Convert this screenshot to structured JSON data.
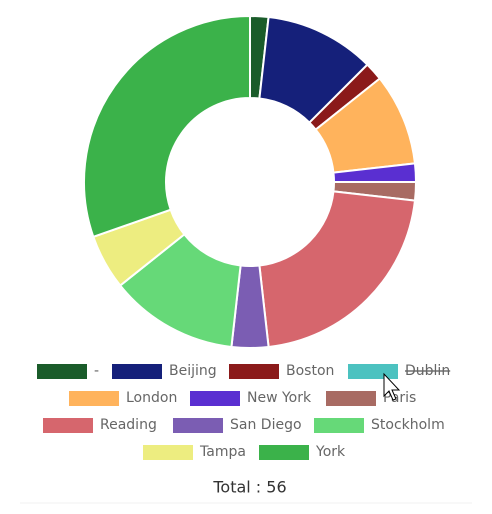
{
  "chart_data": {
    "type": "doughnut",
    "categories": [
      "-",
      "Beijing",
      "Boston",
      "Dublin",
      "London",
      "New York",
      "Paris",
      "Reading",
      "San Diego",
      "Stockholm",
      "Tampa",
      "York"
    ],
    "values": [
      1,
      6,
      1,
      null,
      5,
      1,
      1,
      12,
      2,
      7,
      3,
      17
    ],
    "colors": [
      "#1a5c2a",
      "#15207a",
      "#8b1a1a",
      "#4cc2c0",
      "#ffb35c",
      "#5a2fd1",
      "#a86b63",
      "#d6666d",
      "#7b5db3",
      "#66d978",
      "#eded80",
      "#3bb24a"
    ],
    "hidden_indices": [
      3
    ],
    "total_label": "Total : 56"
  }
}
